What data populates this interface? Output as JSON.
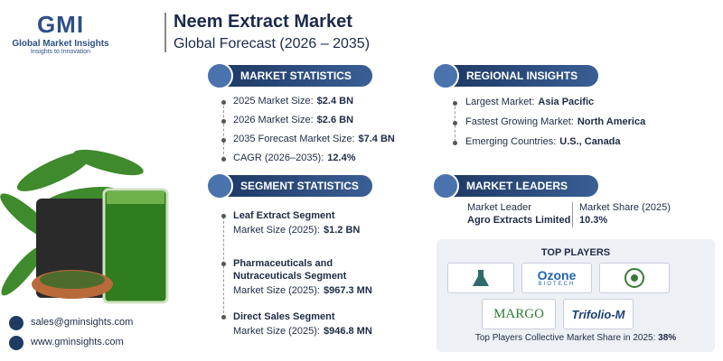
{
  "logo": {
    "mark": "GMI",
    "name": "Global Market Insights",
    "tagline": "Insights to Innovation"
  },
  "header": {
    "title": "Neem Extract Market",
    "subtitle": "Global Forecast (2026 – 2035)"
  },
  "market_statistics": {
    "heading": "MARKET STATISTICS",
    "items": [
      {
        "label": "2025 Market Size:",
        "value": "$2.4 BN"
      },
      {
        "label": "2026 Market Size:",
        "value": "$2.6 BN"
      },
      {
        "label": "2035 Forecast Market Size:",
        "value": "$7.4 BN"
      },
      {
        "label": "CAGR (2026–2035):",
        "value": "12.4%"
      }
    ]
  },
  "regional_insights": {
    "heading": "REGIONAL INSIGHTS",
    "items": [
      {
        "label": "Largest Market:",
        "value": "Asia Pacific"
      },
      {
        "label": "Fastest Growing Market:",
        "value": "North America"
      },
      {
        "label": "Emerging Countries:",
        "value": "U.S., Canada"
      }
    ]
  },
  "segment_statistics": {
    "heading": "SEGMENT STATISTICS",
    "items": [
      {
        "segment": "Leaf Extract Segment",
        "label": "Market Size (2025):",
        "value": "$1.2 BN"
      },
      {
        "segment": "Pharmaceuticals and Nutraceuticals Segment",
        "label": "Market Size (2025):",
        "value": "$967.3 MN"
      },
      {
        "segment": "Direct Sales Segment",
        "label": "Market Size (2025):",
        "value": "$946.8 MN"
      }
    ]
  },
  "market_leaders": {
    "heading": "MARKET LEADERS",
    "leader_label": "Market Leader",
    "leader": "Agro Extracts Limited",
    "share_label": "Market Share (2025)",
    "share": "10.3%"
  },
  "top_players": {
    "heading": "TOP PLAYERS",
    "logos": [
      "Ozone",
      "BIOTECH",
      "MARGO",
      "Trifolio-M"
    ],
    "footer_label": "Top Players Collective Market Share in 2025:",
    "footer_value": "38%"
  },
  "contact": {
    "email": "sales@gminsights.com",
    "website": "www.gminsights.com"
  }
}
